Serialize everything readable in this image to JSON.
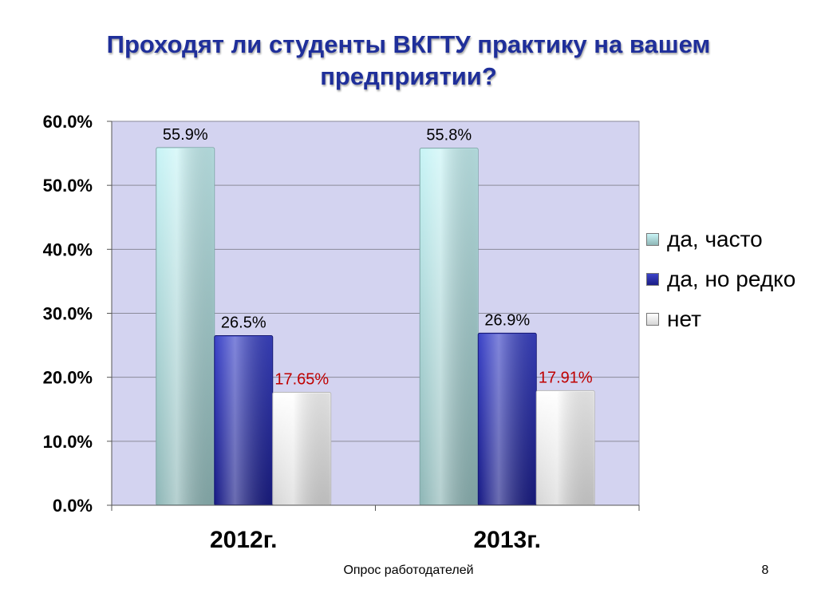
{
  "slide": {
    "title": "Проходят ли студенты ВКГТУ практику на вашем предприятии?",
    "footer": "Опрос работодателей",
    "page_number": "8"
  },
  "colors": {
    "plot_background": "#d3d3f0",
    "title": "#1f2f9a",
    "series_often": "#b9eef0",
    "series_rarely": "#2b2fa8",
    "series_no": "#f4f4f4",
    "no_label": "#c00000"
  },
  "chart_data": {
    "type": "bar",
    "title": "Проходят ли студенты ВКГТУ практику на вашем предприятии?",
    "categories": [
      "2012г.",
      "2013г."
    ],
    "series": [
      {
        "name": "да, часто",
        "values": [
          55.9,
          55.8
        ],
        "labels": [
          "55.9%",
          "55.8%"
        ]
      },
      {
        "name": "да, но редко",
        "values": [
          26.5,
          26.9
        ],
        "labels": [
          "26.5%",
          "26.9%"
        ]
      },
      {
        "name": "нет",
        "values": [
          17.65,
          17.91
        ],
        "labels": [
          "17.65%",
          "17.91%"
        ]
      }
    ],
    "y_ticks": [
      "0.0%",
      "10.0%",
      "20.0%",
      "30.0%",
      "40.0%",
      "50.0%",
      "60.0%"
    ],
    "ylim": [
      0,
      60
    ],
    "xlabel": "",
    "ylabel": "",
    "grid": true,
    "legend_position": "right"
  }
}
